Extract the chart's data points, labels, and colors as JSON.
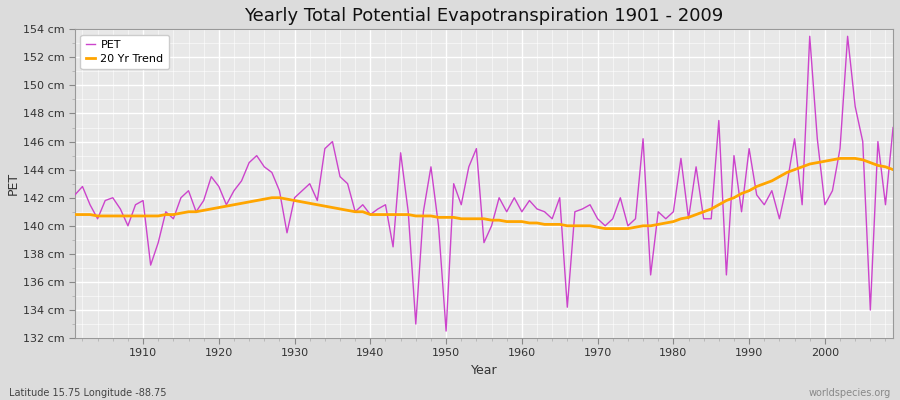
{
  "title": "Yearly Total Potential Evapotranspiration 1901 - 2009",
  "xlabel": "Year",
  "ylabel": "PET",
  "years": [
    1901,
    1902,
    1903,
    1904,
    1905,
    1906,
    1907,
    1908,
    1909,
    1910,
    1911,
    1912,
    1913,
    1914,
    1915,
    1916,
    1917,
    1918,
    1919,
    1920,
    1921,
    1922,
    1923,
    1924,
    1925,
    1926,
    1927,
    1928,
    1929,
    1930,
    1931,
    1932,
    1933,
    1934,
    1935,
    1936,
    1937,
    1938,
    1939,
    1940,
    1941,
    1942,
    1943,
    1944,
    1945,
    1946,
    1947,
    1948,
    1949,
    1950,
    1951,
    1952,
    1953,
    1954,
    1955,
    1956,
    1957,
    1958,
    1959,
    1960,
    1961,
    1962,
    1963,
    1964,
    1965,
    1966,
    1967,
    1968,
    1969,
    1970,
    1971,
    1972,
    1973,
    1974,
    1975,
    1976,
    1977,
    1978,
    1979,
    1980,
    1981,
    1982,
    1983,
    1984,
    1985,
    1986,
    1987,
    1988,
    1989,
    1990,
    1991,
    1992,
    1993,
    1994,
    1995,
    1996,
    1997,
    1998,
    1999,
    2000,
    2001,
    2002,
    2003,
    2004,
    2005,
    2006,
    2007,
    2008,
    2009
  ],
  "pet": [
    142.2,
    142.8,
    141.5,
    140.5,
    141.8,
    142.0,
    141.2,
    140.0,
    141.5,
    141.8,
    137.2,
    138.8,
    141.0,
    140.5,
    142.0,
    142.5,
    141.0,
    141.8,
    143.5,
    142.8,
    141.5,
    142.5,
    143.2,
    144.5,
    145.0,
    144.2,
    143.8,
    142.5,
    139.5,
    142.0,
    142.5,
    143.0,
    141.8,
    145.5,
    146.0,
    143.5,
    143.0,
    141.0,
    141.5,
    140.8,
    141.2,
    141.5,
    138.5,
    145.2,
    141.0,
    133.0,
    141.0,
    144.2,
    140.0,
    132.5,
    143.0,
    141.5,
    144.2,
    145.5,
    138.8,
    140.0,
    142.0,
    141.0,
    142.0,
    141.0,
    141.8,
    141.2,
    141.0,
    140.5,
    142.0,
    134.2,
    141.0,
    141.2,
    141.5,
    140.5,
    140.0,
    140.5,
    142.0,
    140.0,
    140.5,
    146.2,
    136.5,
    141.0,
    140.5,
    141.0,
    144.8,
    140.5,
    144.2,
    140.5,
    140.5,
    147.5,
    136.5,
    145.0,
    141.0,
    145.5,
    142.2,
    141.5,
    142.5,
    140.5,
    143.0,
    146.2,
    141.5,
    153.5,
    146.2,
    141.5,
    142.5,
    145.5,
    153.5,
    148.5,
    146.0,
    134.0,
    146.0,
    141.5,
    147.0
  ],
  "trend": [
    140.8,
    140.8,
    140.8,
    140.7,
    140.7,
    140.7,
    140.7,
    140.7,
    140.7,
    140.7,
    140.7,
    140.7,
    140.8,
    140.8,
    140.9,
    141.0,
    141.0,
    141.1,
    141.2,
    141.3,
    141.4,
    141.5,
    141.6,
    141.7,
    141.8,
    141.9,
    142.0,
    142.0,
    141.9,
    141.8,
    141.7,
    141.6,
    141.5,
    141.4,
    141.3,
    141.2,
    141.1,
    141.0,
    141.0,
    140.8,
    140.8,
    140.8,
    140.8,
    140.8,
    140.8,
    140.7,
    140.7,
    140.7,
    140.6,
    140.6,
    140.6,
    140.5,
    140.5,
    140.5,
    140.5,
    140.4,
    140.4,
    140.3,
    140.3,
    140.3,
    140.2,
    140.2,
    140.1,
    140.1,
    140.1,
    140.0,
    140.0,
    140.0,
    140.0,
    139.9,
    139.8,
    139.8,
    139.8,
    139.8,
    139.9,
    140.0,
    140.0,
    140.1,
    140.2,
    140.3,
    140.5,
    140.6,
    140.8,
    141.0,
    141.2,
    141.5,
    141.8,
    142.0,
    142.3,
    142.5,
    142.8,
    143.0,
    143.2,
    143.5,
    143.8,
    144.0,
    144.2,
    144.4,
    144.5,
    144.6,
    144.7,
    144.8,
    144.8,
    144.8,
    144.7,
    144.5,
    144.3,
    144.2,
    144.0
  ],
  "pet_color": "#CC44CC",
  "trend_color": "#FFA500",
  "bg_color": "#DCDCDC",
  "plot_bg_color": "#E8E8E8",
  "grid_color": "#FFFFFF",
  "ylim": [
    132,
    154
  ],
  "ytick_values": [
    132,
    134,
    136,
    138,
    140,
    142,
    144,
    146,
    148,
    150,
    152,
    154
  ],
  "ytick_labels": [
    "132 cm",
    "134 cm",
    "136 cm",
    "138 cm",
    "140 cm",
    "142 cm",
    "144 cm",
    "146 cm",
    "148 cm",
    "150 cm",
    "152 cm",
    "154 cm"
  ],
  "xtick_values": [
    1910,
    1920,
    1930,
    1940,
    1950,
    1960,
    1970,
    1980,
    1990,
    2000
  ],
  "xlim": [
    1901,
    2009
  ],
  "watermark": "worldspecies.org",
  "footer_left": "Latitude 15.75 Longitude -88.75",
  "title_fontsize": 13,
  "axis_label_fontsize": 9,
  "tick_fontsize": 8,
  "legend_labels": [
    "PET",
    "20 Yr Trend"
  ]
}
